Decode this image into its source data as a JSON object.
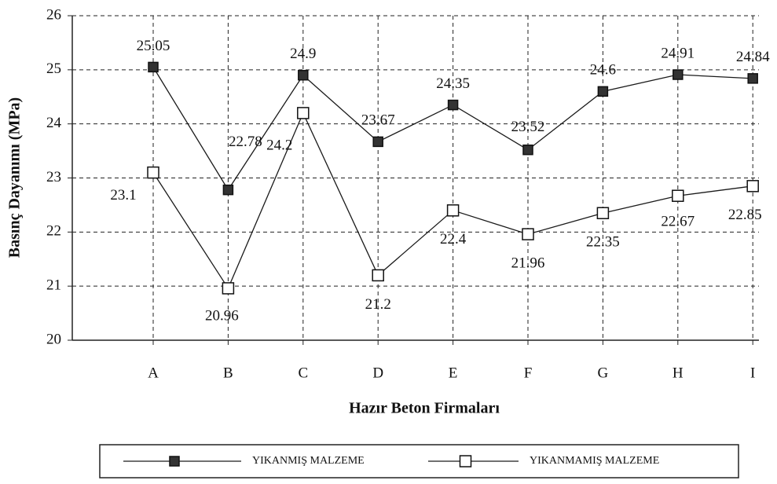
{
  "chart_data": {
    "type": "line",
    "x_label": "Hazır Beton Firmaları",
    "y_label": "Basınç Dayanımı (MPa)",
    "categories": [
      "A",
      "B",
      "C",
      "D",
      "E",
      "F",
      "G",
      "H",
      "I"
    ],
    "series": [
      {
        "name": "YIKANMIŞ MALZEME",
        "color": "#1a1a1a",
        "marker": "filled",
        "values": [
          25.05,
          22.78,
          24.9,
          23.67,
          24.35,
          23.52,
          24.6,
          24.91,
          24.84
        ]
      },
      {
        "name": "YIKANMAMIŞ MALZEME",
        "color": "#1a1a1a",
        "marker": "open",
        "values": [
          23.1,
          20.96,
          24.2,
          21.2,
          22.4,
          21.96,
          22.35,
          22.67,
          22.85
        ]
      }
    ],
    "ylim": [
      20,
      26
    ],
    "yticks": [
      20,
      21,
      22,
      23,
      24,
      25,
      26
    ],
    "grid": true
  }
}
